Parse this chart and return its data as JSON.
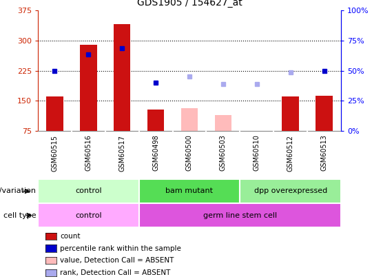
{
  "title": "GDS1905 / 154627_at",
  "samples": [
    "GSM60515",
    "GSM60516",
    "GSM60517",
    "GSM60498",
    "GSM60500",
    "GSM60503",
    "GSM60510",
    "GSM60512",
    "GSM60513"
  ],
  "count_present": [
    160,
    290,
    340,
    128,
    null,
    null,
    null,
    160,
    163
  ],
  "count_absent": [
    null,
    null,
    null,
    null,
    132,
    115,
    null,
    null,
    null
  ],
  "rank_present": [
    225,
    265,
    280,
    195,
    null,
    null,
    null,
    null,
    225
  ],
  "rank_absent": [
    null,
    null,
    null,
    null,
    210,
    192,
    192,
    220,
    null
  ],
  "ylim_left": [
    75,
    375
  ],
  "ylim_right": [
    0,
    100
  ],
  "yticks_left": [
    75,
    150,
    225,
    300,
    375
  ],
  "yticks_right": [
    0,
    25,
    50,
    75,
    100
  ],
  "hgrid_lines": [
    150,
    225,
    300
  ],
  "genotype_groups": [
    {
      "label": "control",
      "start": 0,
      "end": 3,
      "color": "#ccffcc"
    },
    {
      "label": "bam mutant",
      "start": 3,
      "end": 6,
      "color": "#55dd55"
    },
    {
      "label": "dpp overexpressed",
      "start": 6,
      "end": 9,
      "color": "#99ee99"
    }
  ],
  "celltype_groups": [
    {
      "label": "control",
      "start": 0,
      "end": 3,
      "color": "#ffaaff"
    },
    {
      "label": "germ line stem cell",
      "start": 3,
      "end": 9,
      "color": "#dd55dd"
    }
  ],
  "bar_color_present": "#cc1111",
  "bar_color_absent": "#ffbbbb",
  "dot_color_present": "#0000cc",
  "dot_color_absent": "#aaaaee",
  "sample_col_bg": "#c8c8c8",
  "sample_col_sep": "#aaaaaa",
  "legend_items": [
    {
      "label": "count",
      "color": "#cc1111"
    },
    {
      "label": "percentile rank within the sample",
      "color": "#0000cc"
    },
    {
      "label": "value, Detection Call = ABSENT",
      "color": "#ffbbbb"
    },
    {
      "label": "rank, Detection Call = ABSENT",
      "color": "#aaaaee"
    }
  ]
}
